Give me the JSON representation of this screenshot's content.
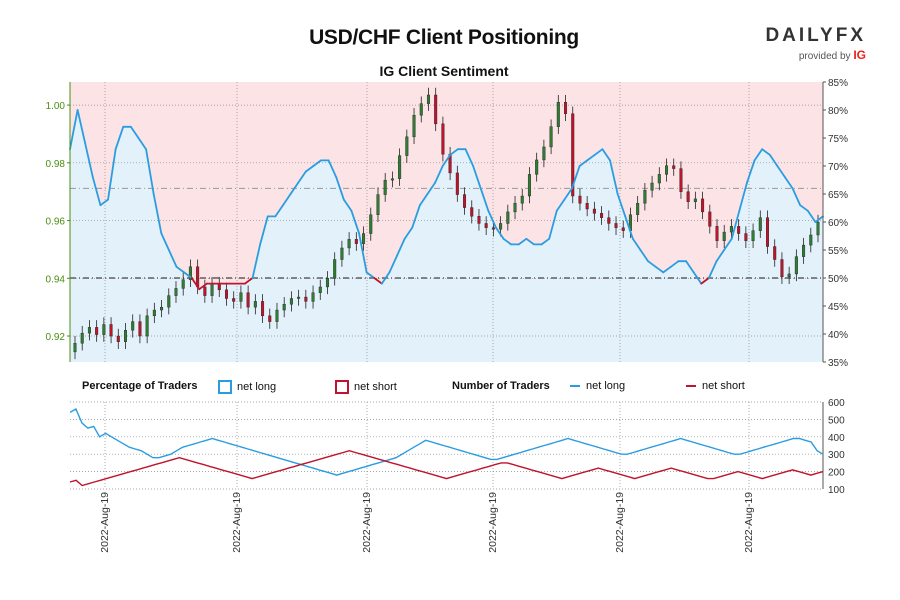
{
  "header": {
    "title": "USD/CHF Client Positioning",
    "subtitle": "IG Client Sentiment",
    "brand": "DAILYFX",
    "brand_by": "provided by",
    "brand_ig": "IG"
  },
  "legend": {
    "pct_title": "Percentage of Traders",
    "pct_long": "net long",
    "pct_short": "net short",
    "num_title": "Number of Traders",
    "num_long": "net long",
    "num_short": "net short"
  },
  "colors": {
    "long": "#2a9de0",
    "short": "#c0142c",
    "long_fill": "#e3f1fb",
    "short_fill": "#fbe3e6",
    "up_candle": "#2e7d32",
    "down_candle": "#c0142c",
    "axis_left": "#4a8f12"
  },
  "chart_data": {
    "type": "line",
    "x_tick_labels": [
      "2022-Aug-19",
      "2022-Aug-19",
      "2022-Aug-19",
      "2022-Aug-19",
      "2022-Aug-19",
      "2022-Aug-19"
    ],
    "price": {
      "ylim": [
        0.911,
        1.008
      ],
      "yticks": [
        "0.92",
        "0.94",
        "0.96",
        "0.98",
        "1.00"
      ],
      "close": [
        0.9175,
        0.921,
        0.923,
        0.9205,
        0.924,
        0.92,
        0.918,
        0.922,
        0.925,
        0.92,
        0.927,
        0.929,
        0.93,
        0.934,
        0.9365,
        0.9395,
        0.944,
        0.937,
        0.934,
        0.938,
        0.936,
        0.933,
        0.932,
        0.935,
        0.93,
        0.932,
        0.927,
        0.925,
        0.929,
        0.931,
        0.933,
        0.9335,
        0.932,
        0.935,
        0.937,
        0.94,
        0.9465,
        0.9505,
        0.9535,
        0.952,
        0.9555,
        0.962,
        0.969,
        0.974,
        0.9745,
        0.9825,
        0.989,
        0.9965,
        1.0005,
        1.0035,
        0.9935,
        0.983,
        0.9765,
        0.969,
        0.9645,
        0.9615,
        0.959,
        0.9575,
        0.957,
        0.959,
        0.963,
        0.966,
        0.9685,
        0.976,
        0.981,
        0.9855,
        0.9925,
        1.001,
        0.997,
        0.9685,
        0.966,
        0.964,
        0.9625,
        0.961,
        0.959,
        0.9575,
        0.9565,
        0.962,
        0.966,
        0.9705,
        0.973,
        0.976,
        0.979,
        0.978,
        0.97,
        0.9665,
        0.9675,
        0.963,
        0.958,
        0.953,
        0.956,
        0.958,
        0.9555,
        0.953,
        0.9565,
        0.961,
        0.951,
        0.9465,
        0.9405,
        0.9415,
        0.9475,
        0.9515,
        0.955,
        0.9595
      ],
      "ylabel": ""
    },
    "sentiment": {
      "ylim": [
        35,
        85
      ],
      "yticks": [
        "35%",
        "40%",
        "45%",
        "50%",
        "55%",
        "60%",
        "65%",
        "70%",
        "75%",
        "80%",
        "85%"
      ],
      "net_long_pct": [
        73,
        80,
        74,
        68,
        63,
        64,
        73,
        77,
        77,
        75,
        73,
        65,
        58,
        55,
        52,
        51,
        50,
        48,
        49,
        49,
        49,
        49,
        49,
        49,
        50,
        56,
        61,
        61,
        63,
        65,
        67,
        69,
        70,
        71,
        71,
        68,
        64,
        62,
        58,
        51,
        50,
        49,
        51,
        54,
        57,
        59,
        63,
        65,
        67,
        70,
        72,
        73,
        73,
        70,
        66,
        62,
        59,
        57,
        56,
        56,
        57,
        56,
        56,
        57,
        62,
        64,
        66,
        70,
        71,
        72,
        73,
        71,
        65,
        61,
        57,
        55,
        53,
        52,
        51,
        52,
        53,
        53,
        51,
        49,
        50,
        53,
        55,
        57,
        62,
        67,
        71,
        73,
        72,
        70,
        68,
        66,
        63,
        62,
        60,
        61
      ],
      "net_short_pct": [
        27,
        20,
        26,
        32,
        37,
        36,
        27,
        23,
        23,
        25,
        27,
        35,
        42,
        45,
        48,
        49,
        50,
        52,
        51,
        51,
        51,
        51,
        51,
        51,
        50,
        44,
        39,
        39,
        37,
        35,
        33,
        31,
        30,
        29,
        29,
        32,
        36,
        38,
        42,
        49,
        50,
        51,
        49,
        46,
        43,
        41,
        37,
        35,
        33,
        30,
        28,
        27,
        27,
        30,
        34,
        38,
        41,
        43,
        44,
        44,
        43,
        44,
        44,
        43,
        38,
        36,
        34,
        30,
        29,
        28,
        27,
        29,
        35,
        39,
        43,
        45,
        47,
        48,
        49,
        48,
        47,
        47,
        49,
        51,
        50,
        47,
        45,
        43,
        38,
        33,
        29,
        27,
        28,
        30,
        32,
        34,
        37,
        38,
        40,
        39
      ]
    },
    "traders": {
      "ylim": [
        100,
        600
      ],
      "yticks": [
        "100",
        "200",
        "300",
        "400",
        "500",
        "600"
      ],
      "net_long_count": [
        540,
        560,
        480,
        450,
        460,
        400,
        420,
        400,
        380,
        360,
        340,
        330,
        320,
        300,
        280,
        280,
        290,
        300,
        320,
        340,
        350,
        360,
        370,
        380,
        390,
        380,
        370,
        360,
        350,
        340,
        330,
        320,
        310,
        300,
        290,
        280,
        270,
        260,
        250,
        240,
        230,
        220,
        210,
        200,
        190,
        180,
        190,
        200,
        210,
        220,
        230,
        240,
        250,
        260,
        270,
        280,
        300,
        320,
        340,
        360,
        380,
        370,
        360,
        350,
        340,
        330,
        320,
        310,
        300,
        290,
        280,
        270,
        270,
        280,
        290,
        300,
        310,
        320,
        330,
        340,
        350,
        360,
        370,
        380,
        390,
        380,
        370,
        360,
        350,
        340,
        330,
        320,
        310,
        300,
        300,
        310,
        320,
        330,
        340,
        350,
        360,
        370,
        380,
        390,
        380,
        370,
        360,
        350,
        340,
        330,
        320,
        310,
        300,
        300,
        310,
        320,
        330,
        340,
        350,
        360,
        370,
        380,
        390,
        390,
        380,
        370,
        320,
        300
      ],
      "net_short_count": [
        140,
        150,
        120,
        130,
        140,
        150,
        160,
        170,
        180,
        190,
        200,
        210,
        220,
        230,
        240,
        250,
        260,
        270,
        280,
        270,
        260,
        250,
        240,
        230,
        220,
        210,
        200,
        190,
        180,
        170,
        160,
        170,
        180,
        190,
        200,
        210,
        220,
        230,
        240,
        250,
        260,
        270,
        280,
        290,
        300,
        310,
        320,
        310,
        300,
        290,
        280,
        270,
        260,
        250,
        240,
        230,
        220,
        210,
        200,
        190,
        180,
        170,
        160,
        170,
        180,
        190,
        200,
        210,
        220,
        230,
        240,
        250,
        250,
        240,
        230,
        220,
        210,
        200,
        190,
        180,
        170,
        160,
        170,
        180,
        190,
        200,
        210,
        220,
        210,
        200,
        190,
        180,
        170,
        160,
        170,
        180,
        190,
        200,
        210,
        220,
        210,
        200,
        190,
        180,
        170,
        160,
        160,
        170,
        180,
        190,
        200,
        190,
        180,
        170,
        160,
        170,
        180,
        190,
        200,
        210,
        200,
        190,
        180,
        190,
        200
      ]
    }
  }
}
